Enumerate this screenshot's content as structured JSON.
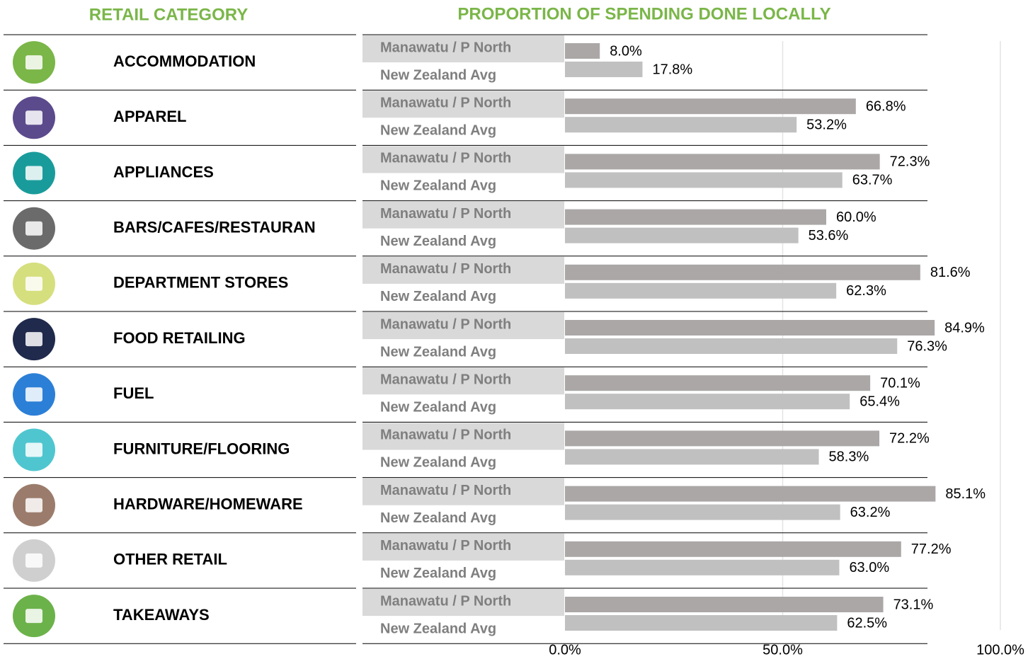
{
  "chart_data": {
    "type": "bar",
    "orientation": "horizontal",
    "category_header": "RETAIL CATEGORY",
    "title": "PROPORTION OF SPENDING DONE LOCALLY",
    "categories": [
      "ACCOMMODATION",
      "APPAREL",
      "APPLIANCES",
      "BARS/CAFES/RESTAURAN",
      "DEPARTMENT STORES",
      "FOOD RETAILING",
      "FUEL",
      "FURNITURE/FLOORING",
      "HARDWARE/HOMEWARE",
      "OTHER RETAIL",
      "TAKEAWAYS"
    ],
    "series": [
      {
        "name": "Manawatu / P North",
        "color": "#aba7a7",
        "values": [
          8.0,
          66.8,
          72.3,
          60.0,
          81.6,
          84.9,
          70.1,
          72.2,
          85.1,
          77.2,
          73.1
        ],
        "value_labels": [
          "8.0%",
          "66.8%",
          "72.3%",
          "60.0%",
          "81.6%",
          "84.9%",
          "70.1%",
          "72.2%",
          "85.1%",
          "77.2%",
          "73.1%"
        ]
      },
      {
        "name": "New Zealand Avg",
        "color": "#c0c0c0",
        "values": [
          17.8,
          53.2,
          63.7,
          53.6,
          62.3,
          76.3,
          65.4,
          58.3,
          63.2,
          63.0,
          62.5
        ],
        "value_labels": [
          "17.8%",
          "53.2%",
          "63.7%",
          "53.6%",
          "62.3%",
          "76.3%",
          "65.4%",
          "58.3%",
          "63.2%",
          "63.0%",
          "62.5%"
        ]
      }
    ],
    "xlim": [
      0,
      100
    ],
    "xticks": [
      {
        "value": 0,
        "label": "0.0%"
      },
      {
        "value": 50,
        "label": "50.0%"
      },
      {
        "value": 100,
        "label": "100.0%"
      }
    ],
    "grid": true
  }
}
